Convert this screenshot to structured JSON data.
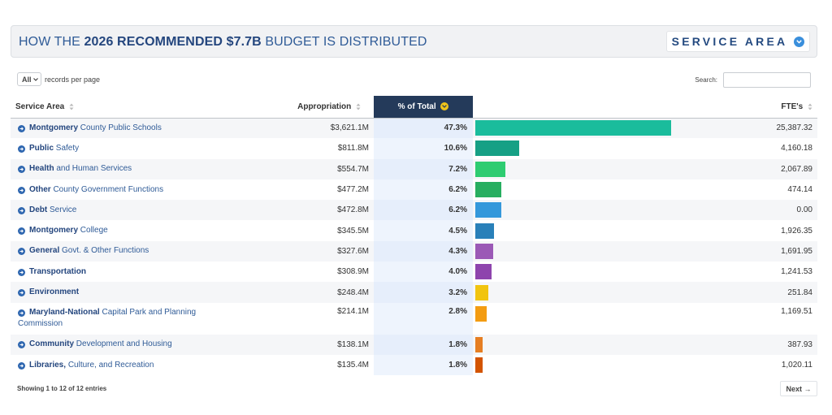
{
  "header": {
    "title_prefix": "HOW THE",
    "title_bold": "2026 RECOMMENDED $7.7B",
    "title_suffix": "BUDGET IS DISTRIBUTED",
    "service_area_button": "SERVICE AREA"
  },
  "controls": {
    "length_value": "All",
    "length_label": "records per page",
    "search_label": "Search:",
    "search_value": ""
  },
  "table": {
    "columns": {
      "service_area": "Service Area",
      "appropriation": "Appropriation",
      "pct_total": "% of Total",
      "ftes": "FTE's"
    },
    "rows": [
      {
        "bold": "Montgomery",
        "rest": "County Public Schools",
        "appropriation": "$3,621.1M",
        "pct": "47.3%",
        "pct_value": 47.3,
        "color": "#1abc9c",
        "ftes": "25,387.32"
      },
      {
        "bold": "Public",
        "rest": "Safety",
        "appropriation": "$811.8M",
        "pct": "10.6%",
        "pct_value": 10.6,
        "color": "#16a085",
        "ftes": "4,160.18"
      },
      {
        "bold": "Health",
        "rest": "and Human Services",
        "appropriation": "$554.7M",
        "pct": "7.2%",
        "pct_value": 7.2,
        "color": "#2ecc71",
        "ftes": "2,067.89"
      },
      {
        "bold": "Other",
        "rest": "County Government Functions",
        "appropriation": "$477.2M",
        "pct": "6.2%",
        "pct_value": 6.2,
        "color": "#27ae60",
        "ftes": "474.14"
      },
      {
        "bold": "Debt",
        "rest": "Service",
        "appropriation": "$472.8M",
        "pct": "6.2%",
        "pct_value": 6.2,
        "color": "#3498db",
        "ftes": "0.00"
      },
      {
        "bold": "Montgomery",
        "rest": "College",
        "appropriation": "$345.5M",
        "pct": "4.5%",
        "pct_value": 4.5,
        "color": "#2980b9",
        "ftes": "1,926.35"
      },
      {
        "bold": "General",
        "rest": "Govt. & Other Functions",
        "appropriation": "$327.6M",
        "pct": "4.3%",
        "pct_value": 4.3,
        "color": "#9b59b6",
        "ftes": "1,691.95"
      },
      {
        "bold": "Transportation",
        "rest": "",
        "appropriation": "$308.9M",
        "pct": "4.0%",
        "pct_value": 4.0,
        "color": "#8e44ad",
        "ftes": "1,241.53"
      },
      {
        "bold": "Environment",
        "rest": "",
        "appropriation": "$248.4M",
        "pct": "3.2%",
        "pct_value": 3.2,
        "color": "#f1c40f",
        "ftes": "251.84"
      },
      {
        "bold": "Maryland-National",
        "rest": "Capital Park and Planning Commission",
        "appropriation": "$214.1M",
        "pct": "2.8%",
        "pct_value": 2.8,
        "color": "#f39c12",
        "ftes": "1,169.51"
      },
      {
        "bold": "Community",
        "rest": "Development and Housing",
        "appropriation": "$138.1M",
        "pct": "1.8%",
        "pct_value": 1.8,
        "color": "#e67e22",
        "ftes": "387.93"
      },
      {
        "bold": "Libraries,",
        "rest": "Culture, and Recreation",
        "appropriation": "$135.4M",
        "pct": "1.8%",
        "pct_value": 1.8,
        "color": "#d35400",
        "ftes": "1,020.11"
      }
    ]
  },
  "footer": {
    "info": "Showing 1 to 12 of 12 entries",
    "next_label": "Next →"
  },
  "icons": {
    "row_icon": "arrow-right-circle-icon",
    "sort_icon": "sort-both-icon",
    "sorted_desc_icon": "chevron-down-circle-icon"
  }
}
